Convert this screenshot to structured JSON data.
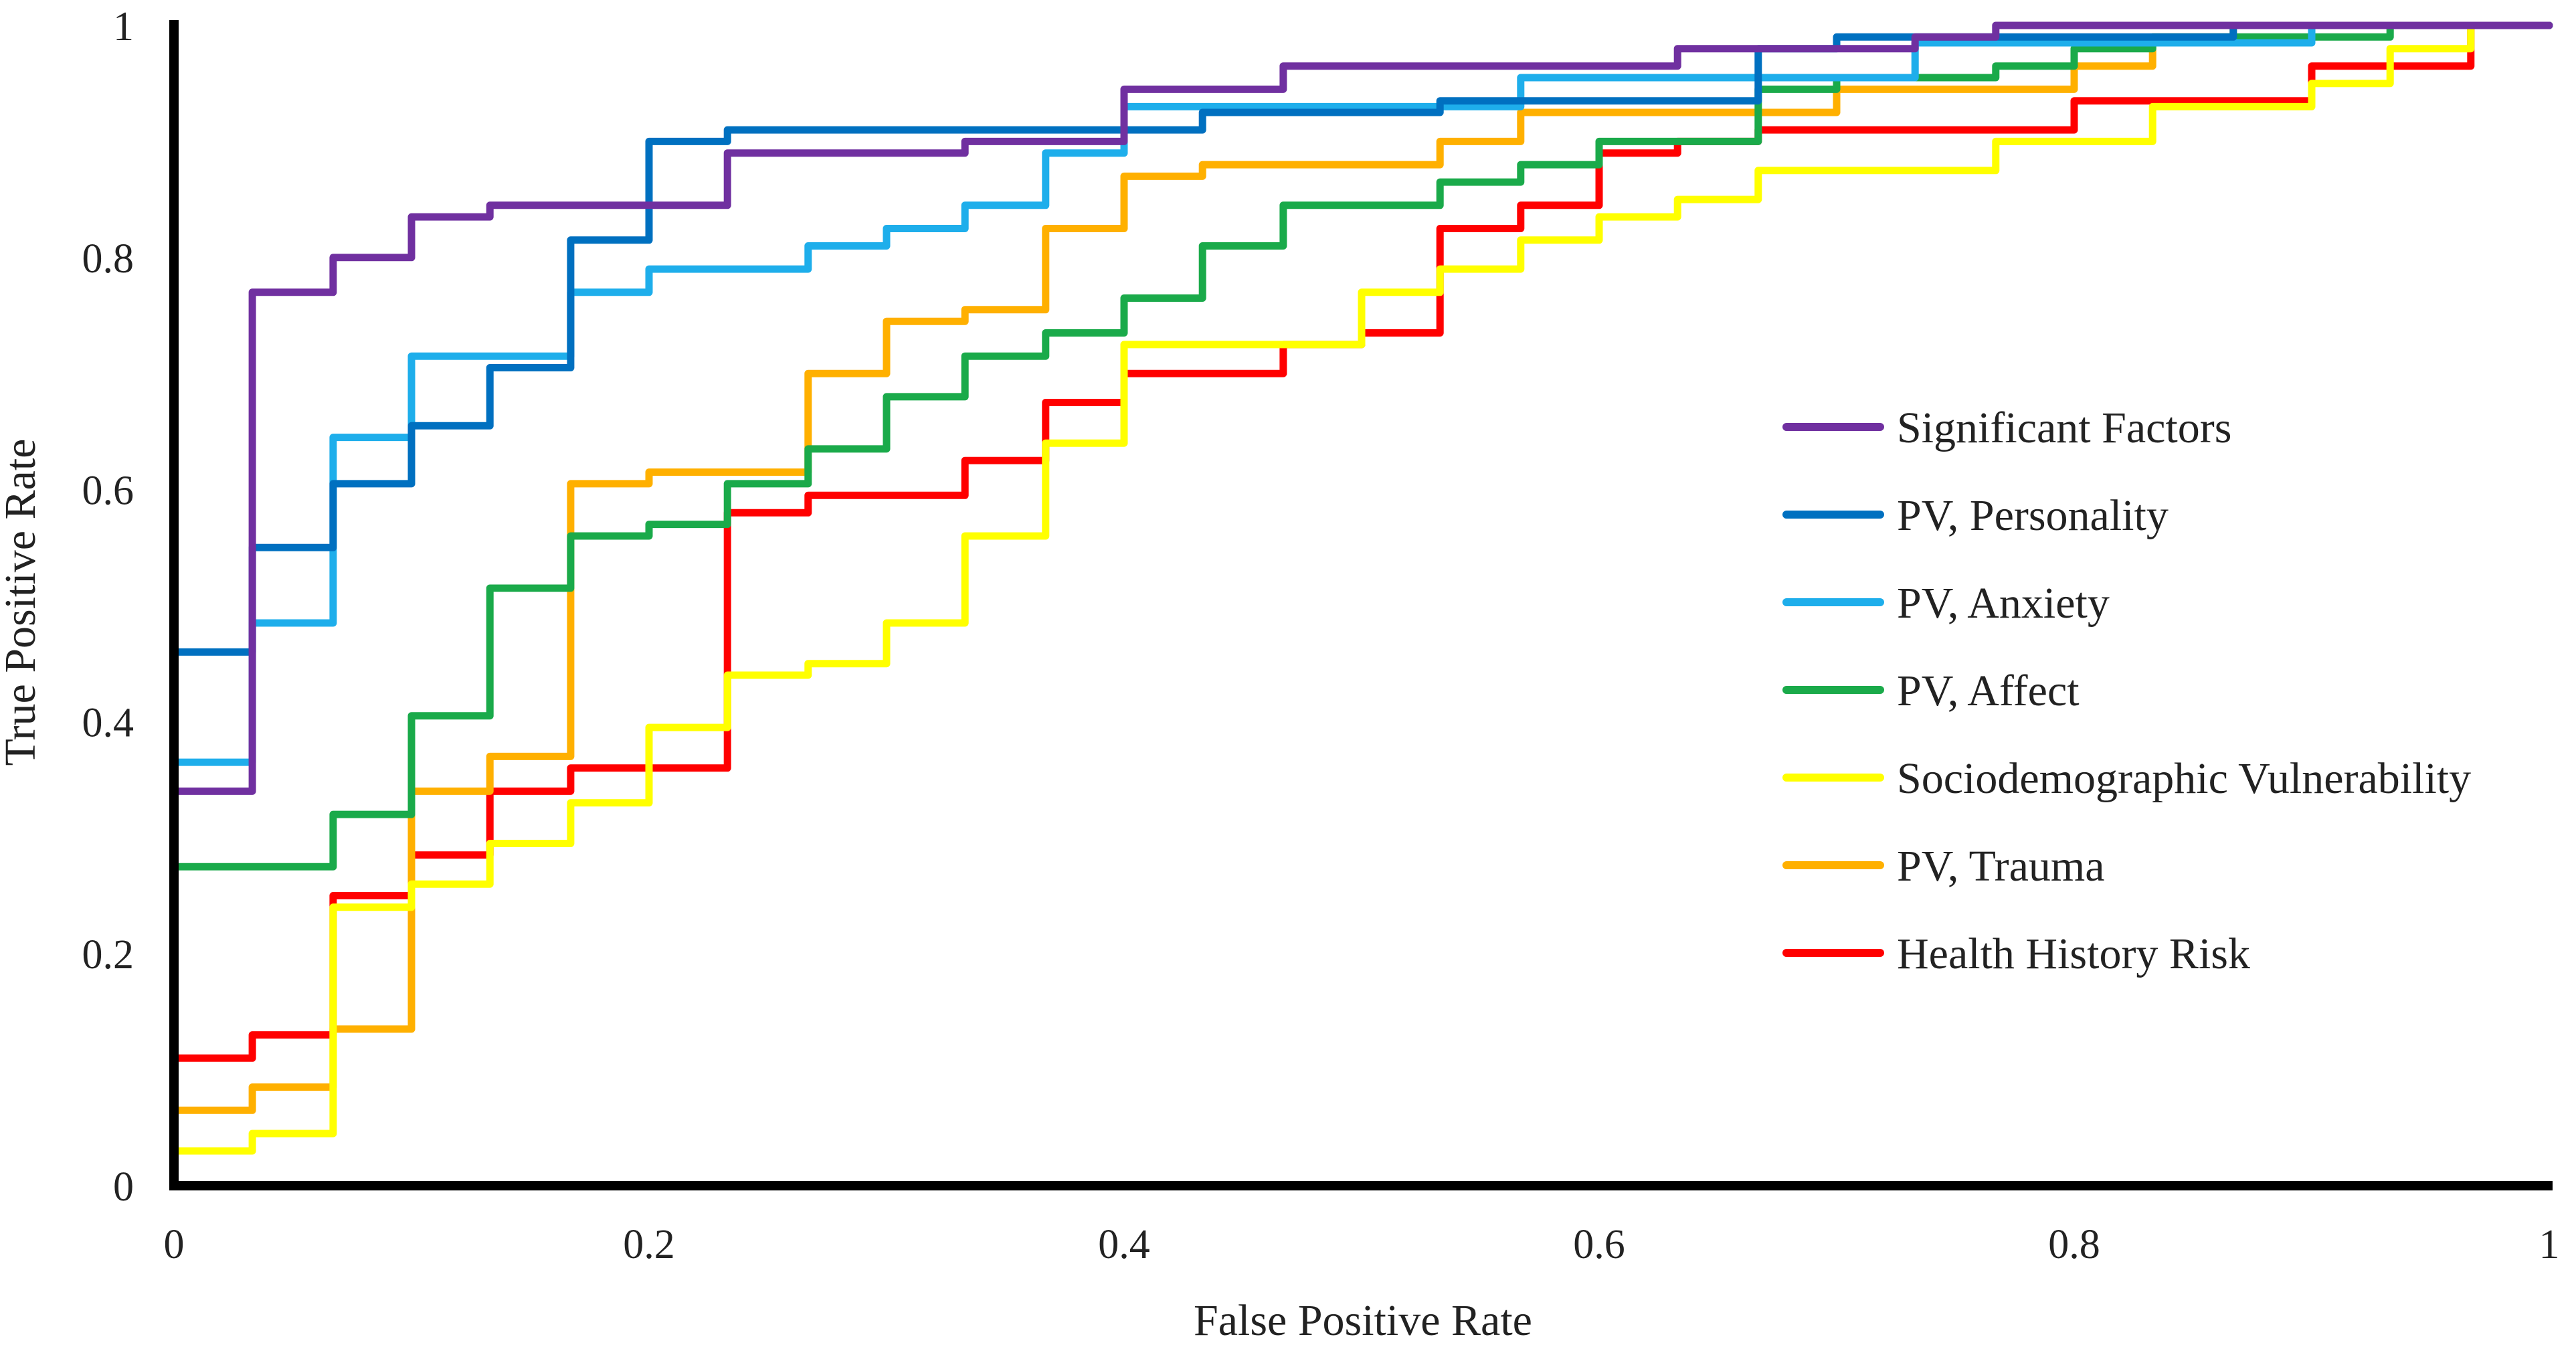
{
  "chart_data": {
    "type": "line",
    "title": "",
    "xlabel": "False Positive Rate",
    "ylabel": "True Positive Rate",
    "xlim": [
      0,
      1
    ],
    "ylim": [
      0,
      1
    ],
    "x_ticks": [
      "0",
      "0.2",
      "0.4",
      "0.6",
      "0.8",
      "1"
    ],
    "y_ticks": [
      "0",
      "0.2",
      "0.4",
      "0.6",
      "0.8",
      "1"
    ],
    "grid": false,
    "legend_position": "right-middle",
    "series": [
      {
        "name": "Significant Factors",
        "color": "#7030A0",
        "points": [
          [
            0,
            0.34
          ],
          [
            0.033,
            0.34
          ],
          [
            0.033,
            0.77
          ],
          [
            0.067,
            0.77
          ],
          [
            0.067,
            0.8
          ],
          [
            0.1,
            0.8
          ],
          [
            0.1,
            0.835
          ],
          [
            0.133,
            0.835
          ],
          [
            0.133,
            0.845
          ],
          [
            0.233,
            0.845
          ],
          [
            0.233,
            0.89
          ],
          [
            0.333,
            0.89
          ],
          [
            0.333,
            0.9
          ],
          [
            0.4,
            0.9
          ],
          [
            0.4,
            0.945
          ],
          [
            0.467,
            0.945
          ],
          [
            0.467,
            0.965
          ],
          [
            0.633,
            0.965
          ],
          [
            0.633,
            0.98
          ],
          [
            0.733,
            0.98
          ],
          [
            0.733,
            0.99
          ],
          [
            0.767,
            0.99
          ],
          [
            0.767,
            1.0
          ],
          [
            1.0,
            1.0
          ]
        ]
      },
      {
        "name": "PV, Personality",
        "color": "#0070C0",
        "points": [
          [
            0,
            0.46
          ],
          [
            0.033,
            0.46
          ],
          [
            0.033,
            0.55
          ],
          [
            0.067,
            0.55
          ],
          [
            0.067,
            0.605
          ],
          [
            0.1,
            0.605
          ],
          [
            0.1,
            0.655
          ],
          [
            0.133,
            0.655
          ],
          [
            0.133,
            0.705
          ],
          [
            0.167,
            0.705
          ],
          [
            0.167,
            0.815
          ],
          [
            0.2,
            0.815
          ],
          [
            0.2,
            0.9
          ],
          [
            0.233,
            0.9
          ],
          [
            0.233,
            0.91
          ],
          [
            0.433,
            0.91
          ],
          [
            0.433,
            0.925
          ],
          [
            0.533,
            0.925
          ],
          [
            0.533,
            0.935
          ],
          [
            0.667,
            0.935
          ],
          [
            0.667,
            0.98
          ],
          [
            0.7,
            0.98
          ],
          [
            0.7,
            0.99
          ],
          [
            0.867,
            0.99
          ],
          [
            0.867,
            1.0
          ],
          [
            1.0,
            1.0
          ]
        ]
      },
      {
        "name": "PV, Anxiety",
        "color": "#1EAEEB",
        "points": [
          [
            0,
            0.365
          ],
          [
            0.033,
            0.365
          ],
          [
            0.033,
            0.485
          ],
          [
            0.067,
            0.485
          ],
          [
            0.067,
            0.645
          ],
          [
            0.1,
            0.645
          ],
          [
            0.1,
            0.715
          ],
          [
            0.167,
            0.715
          ],
          [
            0.167,
            0.77
          ],
          [
            0.2,
            0.77
          ],
          [
            0.2,
            0.79
          ],
          [
            0.267,
            0.79
          ],
          [
            0.267,
            0.81
          ],
          [
            0.3,
            0.81
          ],
          [
            0.3,
            0.825
          ],
          [
            0.333,
            0.825
          ],
          [
            0.333,
            0.845
          ],
          [
            0.367,
            0.845
          ],
          [
            0.367,
            0.89
          ],
          [
            0.4,
            0.89
          ],
          [
            0.4,
            0.93
          ],
          [
            0.567,
            0.93
          ],
          [
            0.567,
            0.955
          ],
          [
            0.733,
            0.955
          ],
          [
            0.733,
            0.985
          ],
          [
            0.9,
            0.985
          ],
          [
            0.9,
            1.0
          ],
          [
            1.0,
            1.0
          ]
        ]
      },
      {
        "name": "PV, Affect",
        "color": "#1AAA4A",
        "points": [
          [
            0,
            0.275
          ],
          [
            0.067,
            0.275
          ],
          [
            0.067,
            0.32
          ],
          [
            0.1,
            0.32
          ],
          [
            0.1,
            0.405
          ],
          [
            0.133,
            0.405
          ],
          [
            0.133,
            0.515
          ],
          [
            0.167,
            0.515
          ],
          [
            0.167,
            0.56
          ],
          [
            0.2,
            0.56
          ],
          [
            0.2,
            0.57
          ],
          [
            0.233,
            0.57
          ],
          [
            0.233,
            0.605
          ],
          [
            0.267,
            0.605
          ],
          [
            0.267,
            0.635
          ],
          [
            0.3,
            0.635
          ],
          [
            0.3,
            0.68
          ],
          [
            0.333,
            0.68
          ],
          [
            0.333,
            0.715
          ],
          [
            0.367,
            0.715
          ],
          [
            0.367,
            0.735
          ],
          [
            0.4,
            0.735
          ],
          [
            0.4,
            0.765
          ],
          [
            0.433,
            0.765
          ],
          [
            0.433,
            0.81
          ],
          [
            0.467,
            0.81
          ],
          [
            0.467,
            0.845
          ],
          [
            0.533,
            0.845
          ],
          [
            0.533,
            0.865
          ],
          [
            0.567,
            0.865
          ],
          [
            0.567,
            0.88
          ],
          [
            0.6,
            0.88
          ],
          [
            0.6,
            0.9
          ],
          [
            0.667,
            0.9
          ],
          [
            0.667,
            0.945
          ],
          [
            0.7,
            0.945
          ],
          [
            0.7,
            0.955
          ],
          [
            0.767,
            0.955
          ],
          [
            0.767,
            0.965
          ],
          [
            0.8,
            0.965
          ],
          [
            0.8,
            0.98
          ],
          [
            0.833,
            0.98
          ],
          [
            0.833,
            0.99
          ],
          [
            0.933,
            0.99
          ],
          [
            0.933,
            1.0
          ],
          [
            1.0,
            1.0
          ]
        ]
      },
      {
        "name": "Sociodemographic Vulnerability",
        "color": "#FFFF00",
        "points": [
          [
            0,
            0.03
          ],
          [
            0.033,
            0.03
          ],
          [
            0.033,
            0.045
          ],
          [
            0.067,
            0.045
          ],
          [
            0.067,
            0.24
          ],
          [
            0.1,
            0.24
          ],
          [
            0.1,
            0.26
          ],
          [
            0.133,
            0.26
          ],
          [
            0.133,
            0.295
          ],
          [
            0.167,
            0.295
          ],
          [
            0.167,
            0.33
          ],
          [
            0.2,
            0.33
          ],
          [
            0.2,
            0.395
          ],
          [
            0.233,
            0.395
          ],
          [
            0.233,
            0.44
          ],
          [
            0.267,
            0.44
          ],
          [
            0.267,
            0.45
          ],
          [
            0.3,
            0.45
          ],
          [
            0.3,
            0.485
          ],
          [
            0.333,
            0.485
          ],
          [
            0.333,
            0.56
          ],
          [
            0.367,
            0.56
          ],
          [
            0.367,
            0.64
          ],
          [
            0.4,
            0.64
          ],
          [
            0.4,
            0.725
          ],
          [
            0.5,
            0.725
          ],
          [
            0.5,
            0.77
          ],
          [
            0.533,
            0.77
          ],
          [
            0.533,
            0.79
          ],
          [
            0.567,
            0.79
          ],
          [
            0.567,
            0.815
          ],
          [
            0.6,
            0.815
          ],
          [
            0.6,
            0.835
          ],
          [
            0.633,
            0.835
          ],
          [
            0.633,
            0.85
          ],
          [
            0.667,
            0.85
          ],
          [
            0.667,
            0.875
          ],
          [
            0.767,
            0.875
          ],
          [
            0.767,
            0.9
          ],
          [
            0.833,
            0.9
          ],
          [
            0.833,
            0.93
          ],
          [
            0.9,
            0.93
          ],
          [
            0.9,
            0.95
          ],
          [
            0.933,
            0.95
          ],
          [
            0.933,
            0.98
          ],
          [
            0.967,
            0.98
          ],
          [
            0.967,
            1.0
          ],
          [
            1.0,
            1.0
          ]
        ]
      },
      {
        "name": "PV, Trauma",
        "color": "#FFB000",
        "points": [
          [
            0,
            0.065
          ],
          [
            0.033,
            0.065
          ],
          [
            0.033,
            0.085
          ],
          [
            0.067,
            0.085
          ],
          [
            0.067,
            0.135
          ],
          [
            0.1,
            0.135
          ],
          [
            0.1,
            0.34
          ],
          [
            0.133,
            0.34
          ],
          [
            0.133,
            0.37
          ],
          [
            0.167,
            0.37
          ],
          [
            0.167,
            0.605
          ],
          [
            0.2,
            0.605
          ],
          [
            0.2,
            0.615
          ],
          [
            0.267,
            0.615
          ],
          [
            0.267,
            0.7
          ],
          [
            0.3,
            0.7
          ],
          [
            0.3,
            0.745
          ],
          [
            0.333,
            0.745
          ],
          [
            0.333,
            0.755
          ],
          [
            0.367,
            0.755
          ],
          [
            0.367,
            0.825
          ],
          [
            0.4,
            0.825
          ],
          [
            0.4,
            0.87
          ],
          [
            0.433,
            0.87
          ],
          [
            0.433,
            0.88
          ],
          [
            0.533,
            0.88
          ],
          [
            0.533,
            0.9
          ],
          [
            0.567,
            0.9
          ],
          [
            0.567,
            0.925
          ],
          [
            0.7,
            0.925
          ],
          [
            0.7,
            0.945
          ],
          [
            0.8,
            0.945
          ],
          [
            0.8,
            0.965
          ],
          [
            0.833,
            0.965
          ],
          [
            0.833,
            0.99
          ],
          [
            0.867,
            0.99
          ],
          [
            0.867,
            1.0
          ],
          [
            1.0,
            1.0
          ]
        ]
      },
      {
        "name": "Health History Risk",
        "color": "#FF0000",
        "points": [
          [
            0,
            0.0
          ],
          [
            0,
            0.11
          ],
          [
            0.033,
            0.11
          ],
          [
            0.033,
            0.13
          ],
          [
            0.067,
            0.13
          ],
          [
            0.067,
            0.25
          ],
          [
            0.1,
            0.25
          ],
          [
            0.1,
            0.285
          ],
          [
            0.133,
            0.285
          ],
          [
            0.133,
            0.34
          ],
          [
            0.167,
            0.34
          ],
          [
            0.167,
            0.36
          ],
          [
            0.233,
            0.36
          ],
          [
            0.233,
            0.58
          ],
          [
            0.267,
            0.58
          ],
          [
            0.267,
            0.595
          ],
          [
            0.333,
            0.595
          ],
          [
            0.333,
            0.625
          ],
          [
            0.367,
            0.625
          ],
          [
            0.367,
            0.675
          ],
          [
            0.4,
            0.675
          ],
          [
            0.4,
            0.7
          ],
          [
            0.467,
            0.7
          ],
          [
            0.467,
            0.725
          ],
          [
            0.5,
            0.725
          ],
          [
            0.5,
            0.735
          ],
          [
            0.533,
            0.735
          ],
          [
            0.533,
            0.825
          ],
          [
            0.567,
            0.825
          ],
          [
            0.567,
            0.845
          ],
          [
            0.6,
            0.845
          ],
          [
            0.6,
            0.89
          ],
          [
            0.633,
            0.89
          ],
          [
            0.633,
            0.9
          ],
          [
            0.667,
            0.9
          ],
          [
            0.667,
            0.91
          ],
          [
            0.8,
            0.91
          ],
          [
            0.8,
            0.935
          ],
          [
            0.9,
            0.935
          ],
          [
            0.9,
            0.965
          ],
          [
            0.967,
            0.965
          ],
          [
            0.967,
            1.0
          ],
          [
            1.0,
            1.0
          ]
        ]
      }
    ]
  }
}
